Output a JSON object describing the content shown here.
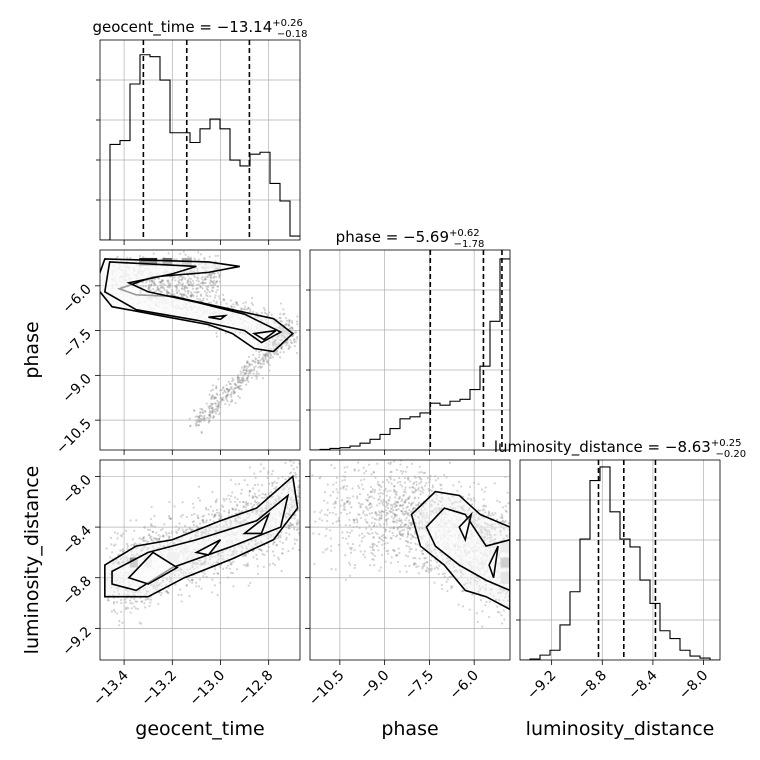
{
  "chart_data": {
    "type": "corner",
    "parameters": [
      "geocent_time",
      "phase",
      "luminosity_distance"
    ],
    "titles": [
      {
        "param": "geocent_time",
        "prefix": "geocent_time = −13.14",
        "sup": "+0.26",
        "sub": "−0.18"
      },
      {
        "param": "phase",
        "prefix": "phase = −5.69",
        "sup": "+0.62",
        "sub": "−1.78"
      },
      {
        "param": "luminosity_distance",
        "prefix": "luminosity_distance = −8.63",
        "sup": "+0.25",
        "sub": "−0.20"
      }
    ],
    "axis_labels": {
      "x": [
        "geocent_time",
        "phase",
        "luminosity_distance"
      ],
      "y": [
        "phase",
        "luminosity_distance"
      ]
    },
    "ranges": {
      "geocent_time": [
        -13.5,
        -12.67
      ],
      "phase": [
        -11.5,
        -4.8
      ],
      "luminosity_distance": [
        -9.45,
        -7.87
      ]
    },
    "ticks": {
      "geocent_time": [
        -13.4,
        -13.2,
        -13.0,
        -12.8
      ],
      "phase": [
        -10.5,
        -9.0,
        -7.5,
        -6.0
      ],
      "luminosity_distance": [
        -9.2,
        -8.8,
        -8.4,
        -8.0
      ]
    },
    "tick_labels": {
      "geocent_time": [
        "−13.4",
        "−13.2",
        "−13.0",
        "−12.8"
      ],
      "phase": [
        "−10.5",
        "−9.0",
        "−7.5",
        "−6.0"
      ],
      "luminosity_distance": [
        "−9.2",
        "−8.8",
        "−8.4",
        "−8.0"
      ]
    },
    "quantiles": {
      "geocent_time": [
        -13.32,
        -13.14,
        -12.88
      ],
      "phase": [
        -7.47,
        -5.69,
        -5.07
      ],
      "luminosity_distance": [
        -8.83,
        -8.63,
        -8.38
      ]
    },
    "histograms": {
      "geocent_time": {
        "edges_start": -13.5,
        "bin_width": 0.0415,
        "counts": [
          0.0,
          0.49,
          0.51,
          0.8,
          0.95,
          0.94,
          0.82,
          0.55,
          0.55,
          0.5,
          0.57,
          0.62,
          0.57,
          0.41,
          0.38,
          0.44,
          0.45,
          0.29,
          0.2,
          0.02
        ]
      },
      "phase": {
        "edges_start": -11.5,
        "bin_width": 0.335,
        "counts": [
          0.0,
          0.003,
          0.008,
          0.012,
          0.02,
          0.035,
          0.055,
          0.08,
          0.11,
          0.16,
          0.17,
          0.19,
          0.24,
          0.23,
          0.25,
          0.26,
          0.31,
          0.43,
          0.66,
          0.98
        ]
      },
      "luminosity_distance": {
        "edges_start": -9.45,
        "bin_width": 0.079,
        "counts": [
          0.0,
          0.005,
          0.025,
          0.05,
          0.18,
          0.35,
          0.62,
          0.92,
          0.99,
          0.76,
          0.62,
          0.58,
          0.41,
          0.29,
          0.15,
          0.11,
          0.05,
          0.02,
          0.01,
          0.0
        ]
      }
    },
    "grid": true,
    "colors": {
      "line": "#000000",
      "points": "#808080",
      "grid": "#b0b0b0"
    }
  }
}
